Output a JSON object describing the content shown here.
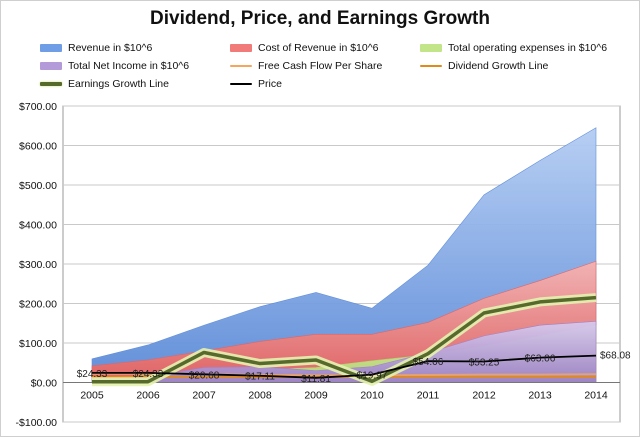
{
  "chart_data": {
    "type": "area",
    "title": "Dividend, Price, and Earnings Growth",
    "xlabel": "",
    "ylabel": "",
    "ylim": [
      -100,
      700
    ],
    "y_ticks": [
      -100,
      0,
      100,
      200,
      300,
      400,
      500,
      600,
      700
    ],
    "y_tick_labels": [
      "-$100.00",
      "$0.00",
      "$100.00",
      "$200.00",
      "$300.00",
      "$400.00",
      "$500.00",
      "$600.00",
      "$700.00"
    ],
    "categories": [
      "2005",
      "2006",
      "2007",
      "2008",
      "2009",
      "2010",
      "2011",
      "2012",
      "2013",
      "2014"
    ],
    "grid": true,
    "legend_position": "top",
    "series": [
      {
        "name": "Revenue in $10^6",
        "kind": "area",
        "color": "#6f9ee6",
        "values": [
          60,
          95,
          145,
          192,
          228,
          188,
          297,
          475,
          562,
          645
        ]
      },
      {
        "name": "Cost of Revenue in $10^6",
        "kind": "area",
        "color": "#f07b78",
        "values": [
          42,
          57,
          80,
          104,
          122,
          122,
          152,
          213,
          258,
          307
        ]
      },
      {
        "name": "Total operating expenses in $10^6",
        "kind": "area",
        "color": "#c3e58a",
        "values": [
          10,
          18,
          25,
          32,
          38,
          55,
          70,
          92,
          118,
          145
        ]
      },
      {
        "name": "Total Net Income in $10^6",
        "kind": "area",
        "color": "#b39ad8",
        "values": [
          10,
          15,
          38,
          40,
          30,
          40,
          75,
          118,
          145,
          155
        ]
      },
      {
        "name": "Free Cash Flow Per Share",
        "kind": "line",
        "color": "#f3a65c",
        "values": [
          22,
          22,
          21,
          19,
          18,
          18,
          19,
          20,
          20,
          21
        ]
      },
      {
        "name": "Dividend Growth Line",
        "kind": "line",
        "color": "#e08a1a",
        "values": [
          14,
          14,
          14,
          14,
          14,
          14,
          14,
          14,
          14,
          14
        ]
      },
      {
        "name": "Earnings Growth Line",
        "kind": "line",
        "color": "#566a2c",
        "values": [
          2,
          2,
          76,
          48,
          57,
          3,
          73,
          176,
          204,
          215
        ]
      },
      {
        "name": "Price",
        "kind": "line",
        "color": "#000000",
        "values": [
          24.33,
          24.33,
          20.68,
          17.11,
          11.81,
          19.97,
          54.06,
          53.25,
          63.06,
          68.08
        ]
      }
    ],
    "data_labels": [
      "$24.33",
      "$24.33",
      "$20.68",
      "$17.11",
      "$11.81",
      "$19.97",
      "$54.06",
      "$53.25",
      "$63.06",
      "$68.08"
    ]
  }
}
